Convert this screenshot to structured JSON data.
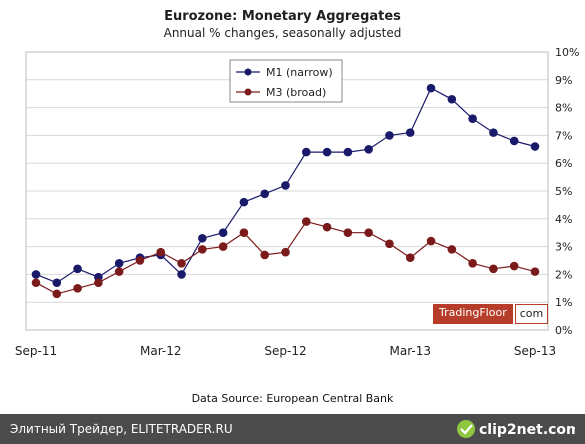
{
  "chart_data": {
    "type": "line",
    "title": "Eurozone: Monetary Aggregates",
    "subtitle": "Annual % changes, seasonally adjusted",
    "x_tick_labels": [
      "Sep-11",
      "Mar-12",
      "Sep-12",
      "Mar-13",
      "Sep-13"
    ],
    "x_tick_months": [
      0,
      6,
      12,
      18,
      24
    ],
    "x": [
      0,
      1,
      2,
      3,
      4,
      5,
      6,
      7,
      8,
      9,
      10,
      11,
      12,
      13,
      14,
      15,
      16,
      17,
      18,
      19,
      20,
      21,
      22,
      23,
      24
    ],
    "ylim": [
      0,
      10
    ],
    "y_tick_labels": [
      "0%",
      "1%",
      "2%",
      "3%",
      "4%",
      "5%",
      "6%",
      "7%",
      "8%",
      "9%",
      "10%"
    ],
    "grid": true,
    "legend_position": "top-center",
    "series": [
      {
        "name": "M1 (narrow)",
        "color": "#1a1a6b",
        "values": [
          2.0,
          1.7,
          2.2,
          1.9,
          2.4,
          2.6,
          2.7,
          2.0,
          3.3,
          3.5,
          4.6,
          4.9,
          5.2,
          6.4,
          6.4,
          6.4,
          6.5,
          7.0,
          7.1,
          8.7,
          8.3,
          7.6,
          7.1,
          6.8,
          6.6
        ]
      },
      {
        "name": "M3 (broad)",
        "color": "#7a1a1a",
        "values": [
          1.7,
          1.3,
          1.5,
          1.7,
          2.1,
          2.5,
          2.8,
          2.4,
          2.9,
          3.0,
          3.5,
          2.7,
          2.8,
          3.9,
          3.7,
          3.5,
          3.5,
          3.1,
          2.6,
          3.2,
          2.9,
          2.4,
          2.2,
          2.3,
          2.1
        ]
      }
    ]
  },
  "badge": {
    "brand": "TradingFloor",
    "suffix": "com"
  },
  "source": "Data Source: European Central Bank",
  "footer": {
    "left_text": "Элитный Трейдер, ELITETRADER.RU",
    "logo_text": "clip2net.com"
  }
}
